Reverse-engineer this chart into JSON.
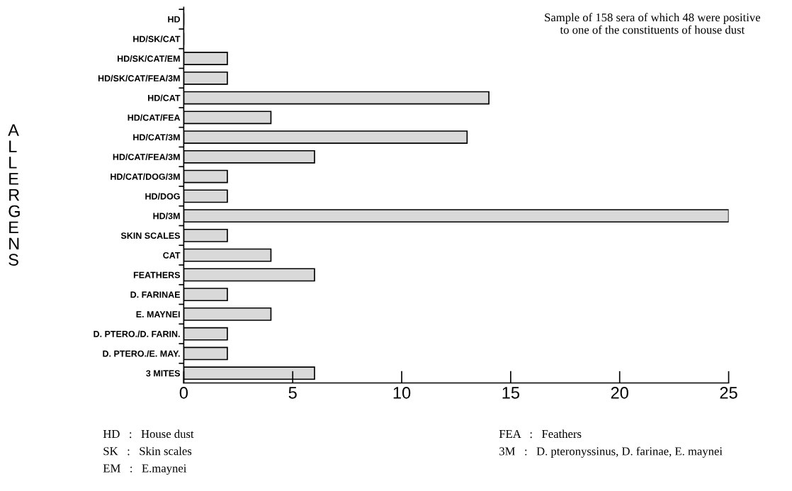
{
  "chart_data": {
    "type": "bar",
    "orientation": "horizontal",
    "ylabel": "ALLERGENS",
    "categories": [
      "HD",
      "HD/SK/CAT",
      "HD/SK/CAT/EM",
      "HD/SK/CAT/FEA/3M",
      "HD/CAT",
      "HD/CAT/FEA",
      "HD/CAT/3M",
      "HD/CAT/FEA/3M",
      "HD/CAT/DOG/3M",
      "HD/DOG",
      "HD/3M",
      "SKIN SCALES",
      "CAT",
      "FEATHERS",
      "D. FARINAE",
      "E. MAYNEI",
      "D. PTERO./D. FARIN.",
      "D. PTERO./E. MAY.",
      "3 MITES"
    ],
    "values": [
      0,
      0,
      2,
      2,
      14,
      4,
      13,
      6,
      2,
      2,
      25,
      2,
      4,
      6,
      2,
      4,
      2,
      2,
      6
    ],
    "color": "#d9d9d9",
    "xlim": [
      0,
      25
    ],
    "xticks": [
      0,
      5,
      10,
      15,
      20,
      25
    ],
    "grid": false,
    "legend": false,
    "annotations": [
      "Sample of 158 sera of which 48 were positive\nto one of the constituents of house dust",
      "HD   :   House dust",
      "SK   :   Skin scales",
      "EM   :   E.maynei",
      "FEA   :   Feathers",
      "3M   :   D. pteronyssinus, D. farinae, E. maynei"
    ]
  }
}
